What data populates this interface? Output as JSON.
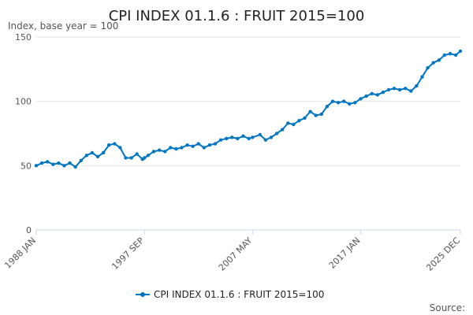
{
  "chart_data": {
    "type": "line",
    "title": "CPI INDEX 01.1.6 : FRUIT 2015=100",
    "subtitle": "Index, base year = 100",
    "credit": "Source:",
    "ylim": [
      0,
      150
    ],
    "yticks": [
      "0",
      "50",
      "100",
      "150"
    ],
    "xticks": [
      "1988 JAN",
      "1997 SEP",
      "2007 MAY",
      "2017 JAN",
      "2025 DEC"
    ],
    "grid": true,
    "legend_position": "bottom",
    "series_color": "#0075c2",
    "series": [
      {
        "name": "CPI INDEX 01.1.6 : FRUIT 2015=100",
        "points": [
          [
            "1988-01",
            50
          ],
          [
            "1988-07",
            52
          ],
          [
            "1989-01",
            53
          ],
          [
            "1989-07",
            51
          ],
          [
            "1990-01",
            52
          ],
          [
            "1990-07",
            50
          ],
          [
            "1991-01",
            52
          ],
          [
            "1991-07",
            49
          ],
          [
            "1992-01",
            54
          ],
          [
            "1992-07",
            58
          ],
          [
            "1993-01",
            60
          ],
          [
            "1993-07",
            57
          ],
          [
            "1994-01",
            60
          ],
          [
            "1994-07",
            66
          ],
          [
            "1995-01",
            67
          ],
          [
            "1995-07",
            64
          ],
          [
            "1996-01",
            56
          ],
          [
            "1996-07",
            56
          ],
          [
            "1997-01",
            59
          ],
          [
            "1997-07",
            55
          ],
          [
            "1997-09",
            56
          ],
          [
            "1998-01",
            58
          ],
          [
            "1998-07",
            61
          ],
          [
            "1999-01",
            62
          ],
          [
            "1999-07",
            61
          ],
          [
            "2000-01",
            64
          ],
          [
            "2000-07",
            63
          ],
          [
            "2001-01",
            64
          ],
          [
            "2001-07",
            66
          ],
          [
            "2002-01",
            65
          ],
          [
            "2002-07",
            67
          ],
          [
            "2003-01",
            64
          ],
          [
            "2003-07",
            66
          ],
          [
            "2004-01",
            67
          ],
          [
            "2004-07",
            70
          ],
          [
            "2005-01",
            71
          ],
          [
            "2005-07",
            72
          ],
          [
            "2006-01",
            71
          ],
          [
            "2006-07",
            73
          ],
          [
            "2007-01",
            71
          ],
          [
            "2007-05",
            72
          ],
          [
            "2008-01",
            74
          ],
          [
            "2008-07",
            70
          ],
          [
            "2009-01",
            72
          ],
          [
            "2009-07",
            75
          ],
          [
            "2010-01",
            78
          ],
          [
            "2010-07",
            83
          ],
          [
            "2011-01",
            82
          ],
          [
            "2011-07",
            85
          ],
          [
            "2012-01",
            87
          ],
          [
            "2012-07",
            92
          ],
          [
            "2013-01",
            89
          ],
          [
            "2013-07",
            90
          ],
          [
            "2014-01",
            96
          ],
          [
            "2014-07",
            100
          ],
          [
            "2015-01",
            99
          ],
          [
            "2015-07",
            100
          ],
          [
            "2016-01",
            98
          ],
          [
            "2016-07",
            99
          ],
          [
            "2017-01",
            102
          ],
          [
            "2017-07",
            104
          ],
          [
            "2018-01",
            106
          ],
          [
            "2018-07",
            105
          ],
          [
            "2019-01",
            107
          ],
          [
            "2019-07",
            109
          ],
          [
            "2020-01",
            110
          ],
          [
            "2020-07",
            109
          ],
          [
            "2021-01",
            110
          ],
          [
            "2021-07",
            108
          ],
          [
            "2022-01",
            112
          ],
          [
            "2022-07",
            119
          ],
          [
            "2023-01",
            126
          ],
          [
            "2023-07",
            130
          ],
          [
            "2024-01",
            132
          ],
          [
            "2024-07",
            136
          ],
          [
            "2025-01",
            137
          ],
          [
            "2025-07",
            136
          ],
          [
            "2025-12",
            139
          ]
        ]
      }
    ]
  }
}
